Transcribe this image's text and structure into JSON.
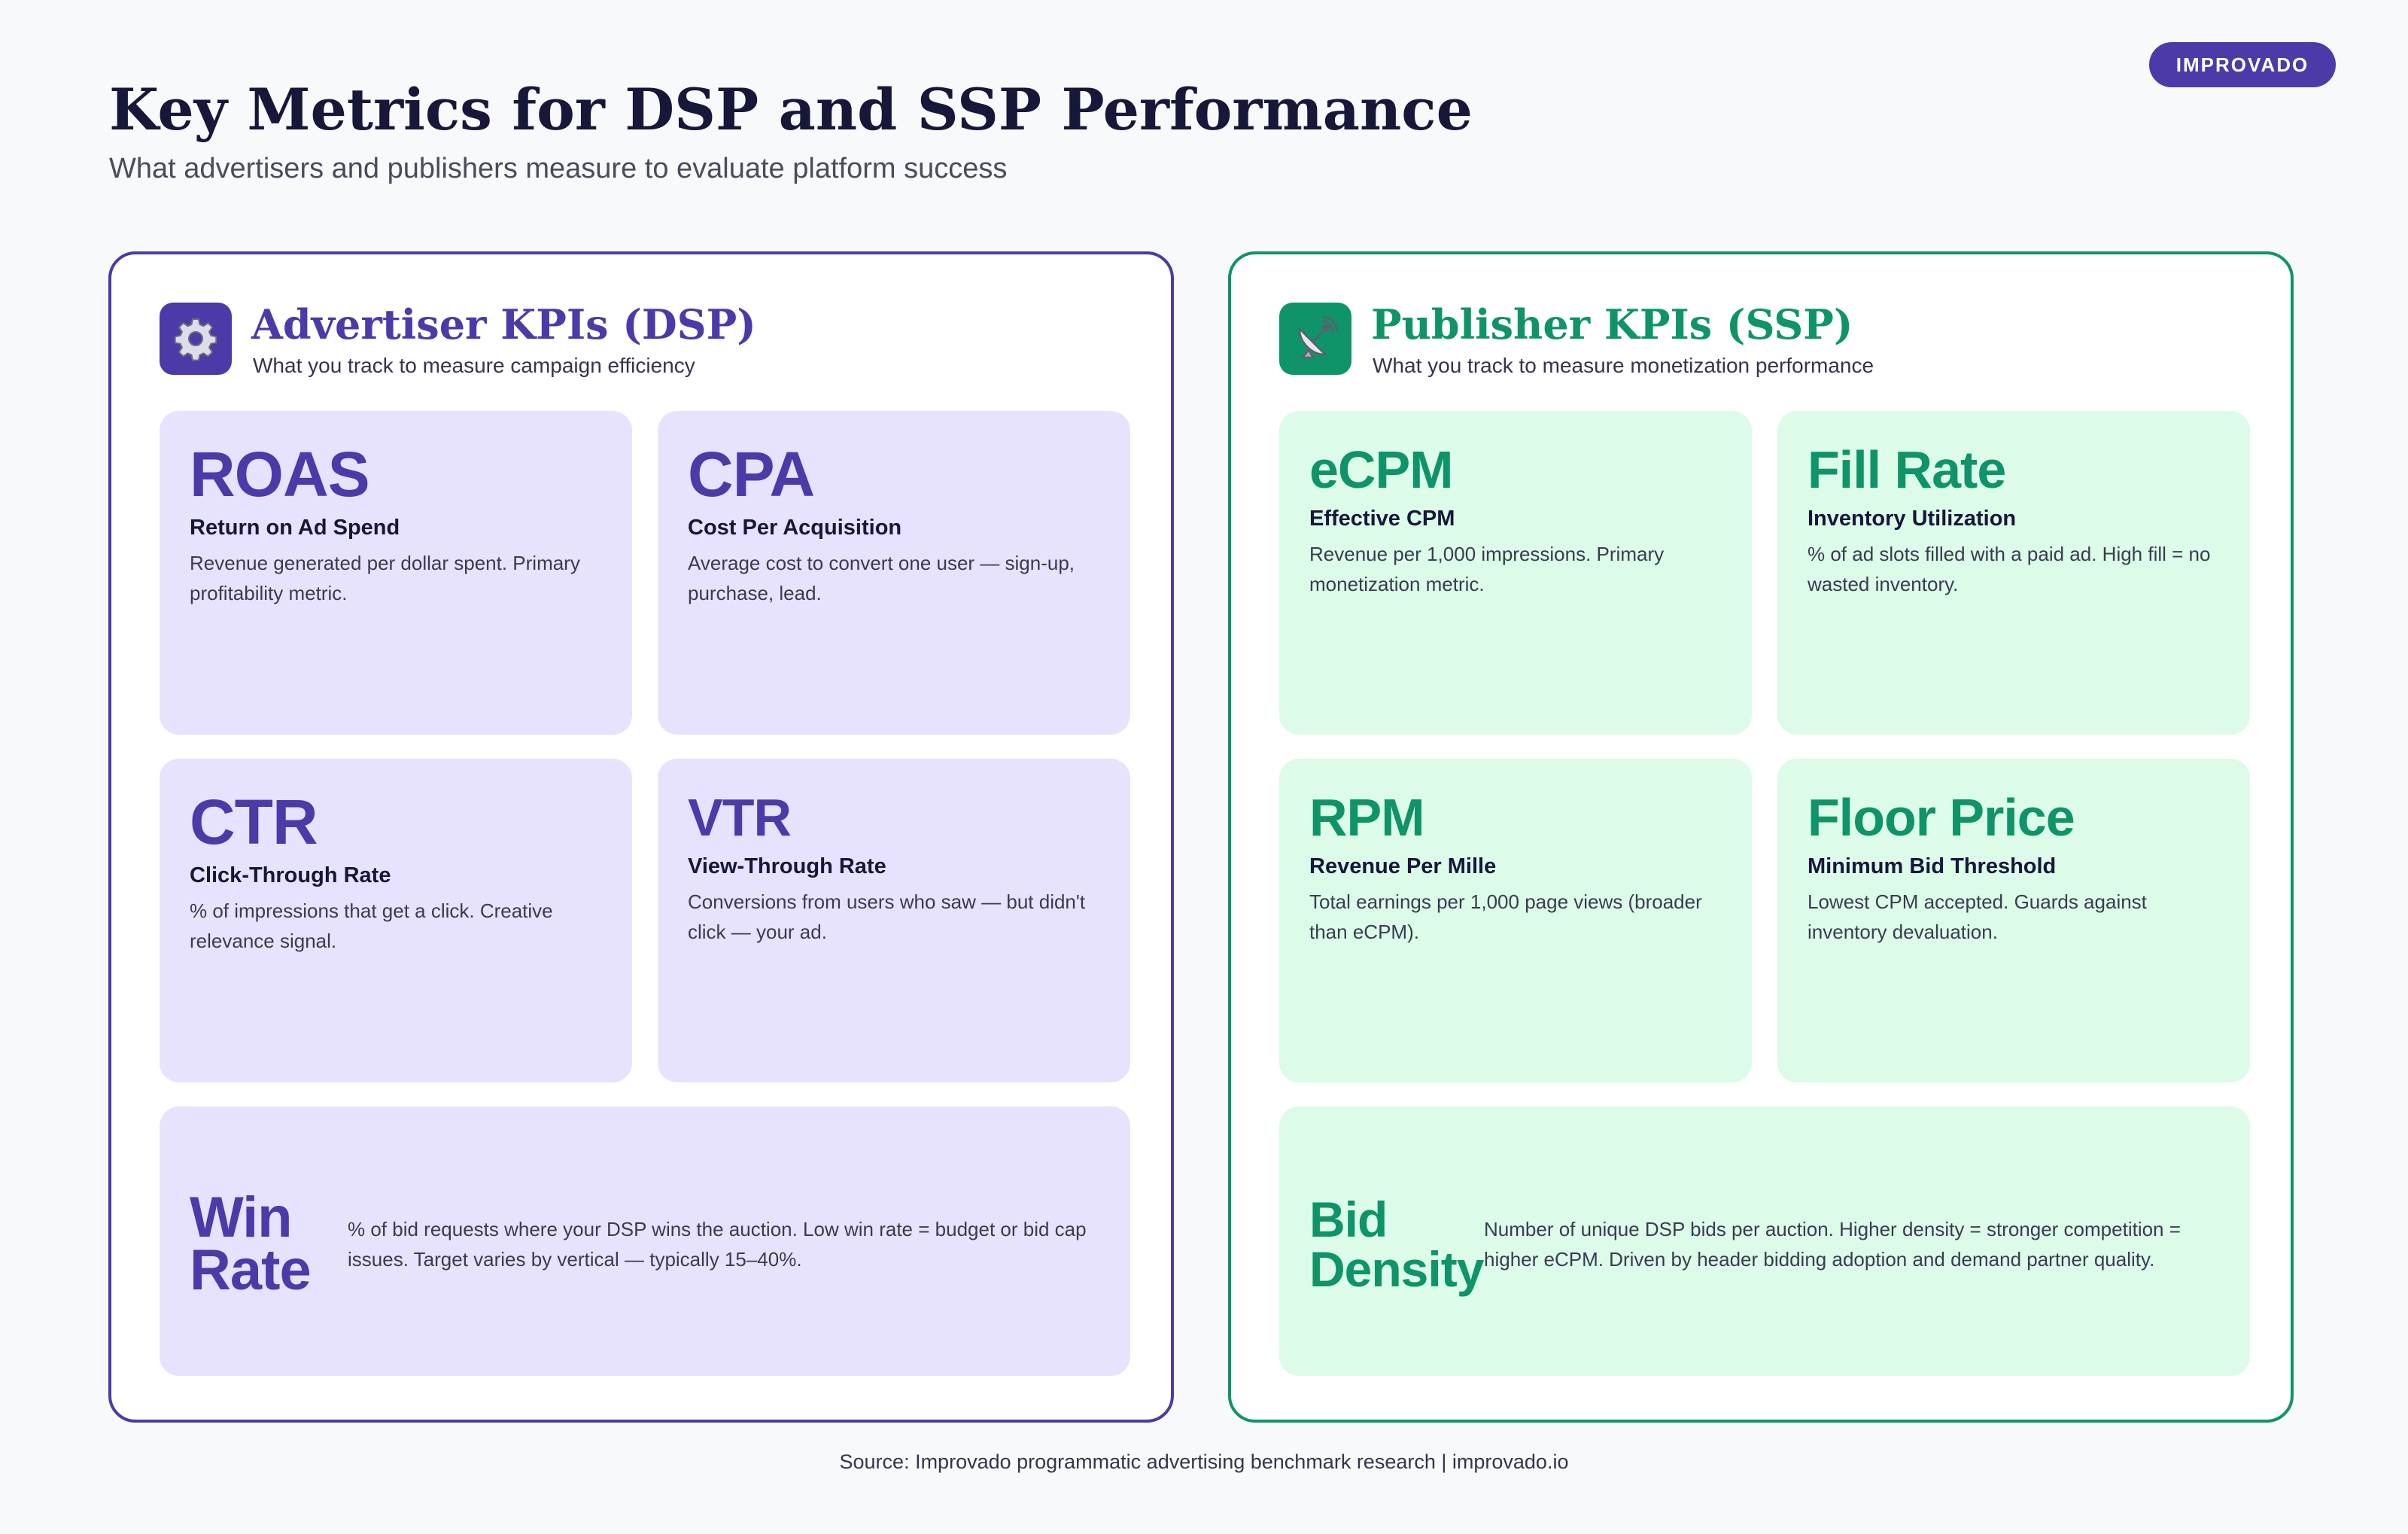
{
  "brand": {
    "badge": "IMPROVADO"
  },
  "header": {
    "title": "Key Metrics for DSP and SSP Performance",
    "subtitle": "What advertisers and publishers measure to evaluate platform success"
  },
  "panels": {
    "dsp": {
      "icon": "gear-icon",
      "title": "Advertiser KPIs (DSP)",
      "subtitle": "What you track to measure campaign efficiency",
      "accent_color": "#4b3aa8",
      "card_color": "#e7e2fd",
      "cards": [
        {
          "abbr": "ROAS",
          "name": "Return on Ad Spend",
          "desc": "Revenue generated per dollar spent. Primary profitability metric."
        },
        {
          "abbr": "CPA",
          "name": "Cost Per Acquisition",
          "desc": "Average cost to convert one user — sign-up, purchase, lead."
        },
        {
          "abbr": "CTR",
          "name": "Click-Through Rate",
          "desc": "% of impressions that get a click. Creative relevance signal."
        },
        {
          "abbr": "VTR",
          "name": "View-Through Rate",
          "desc": "Conversions from users who saw — but didn't click — your ad."
        },
        {
          "abbr": "Win Rate",
          "desc": "% of bid requests where your DSP wins the auction. Low win rate = budget or bid cap issues. Target varies by vertical — typically 15–40%."
        }
      ]
    },
    "ssp": {
      "icon": "satellite-dish-icon",
      "title": "Publisher KPIs (SSP)",
      "subtitle": "What you track to measure monetization performance",
      "accent_color": "#0e9468",
      "card_color": "#dcfbe9",
      "cards": [
        {
          "abbr": "eCPM",
          "name": "Effective CPM",
          "desc": "Revenue per 1,000 impressions. Primary monetization metric."
        },
        {
          "abbr": "Fill Rate",
          "name": "Inventory Utilization",
          "desc": "% of ad slots filled with a paid ad. High fill = no wasted inventory."
        },
        {
          "abbr": "RPM",
          "name": "Revenue Per Mille",
          "desc": "Total earnings per 1,000 page views (broader than eCPM)."
        },
        {
          "abbr": "Floor Price",
          "name": "Minimum Bid Threshold",
          "desc": "Lowest CPM accepted. Guards against inventory devaluation."
        },
        {
          "abbr": "Bid Density",
          "desc": "Number of unique DSP bids per auction. Higher density = stronger competition = higher eCPM. Driven by header bidding adoption and demand partner quality."
        }
      ]
    }
  },
  "footer": {
    "source": "Source: Improvado programmatic advertising benchmark research  |  improvado.io"
  }
}
